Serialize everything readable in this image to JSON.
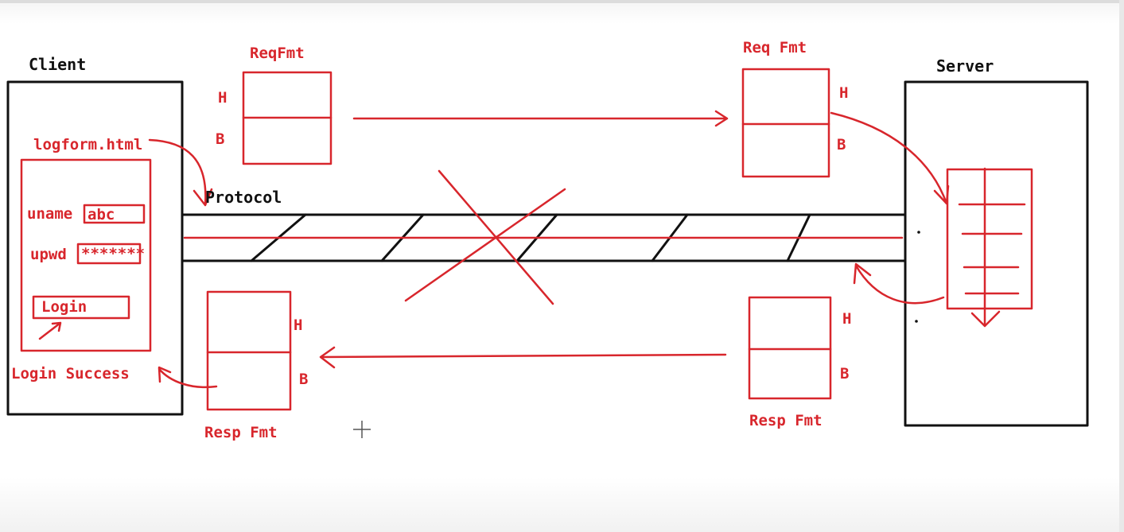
{
  "colors": {
    "ink": "#111111",
    "pen": "#d8262c"
  },
  "labels": {
    "client": "Client",
    "server": "Server",
    "protocol": "Protocol",
    "req_fmt_left": "ReqFmt",
    "req_fmt_right": "Req Fmt",
    "resp_fmt_left": "Resp Fmt",
    "resp_fmt_right": "Resp Fmt",
    "header": "H",
    "body": "B"
  },
  "client_form": {
    "file": "logform.html",
    "uname_label": "uname",
    "uname_value": "abc",
    "upwd_label": "upwd",
    "upwd_value": "*******",
    "login_button": "Login",
    "result": "Login Success"
  },
  "icons": {
    "cursor": "crosshair-move-cursor-icon"
  }
}
